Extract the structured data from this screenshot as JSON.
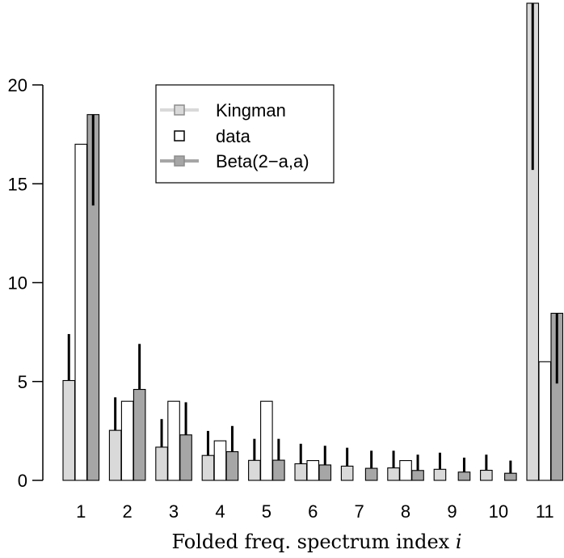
{
  "chart_data": {
    "type": "bar",
    "title": "",
    "xlabel": "Folded freq. spectrum index",
    "xlabel_var": "i",
    "ylabel": "",
    "categories": [
      "1",
      "2",
      "3",
      "4",
      "5",
      "6",
      "7",
      "8",
      "9",
      "10",
      "11"
    ],
    "yticks": [
      0,
      5,
      10,
      15,
      20
    ],
    "ylim": [
      0,
      24.5
    ],
    "legend_position": "top-left",
    "series": [
      {
        "name": "Kingman",
        "color": "#d9d9d9",
        "values": [
          5.05,
          2.53,
          1.68,
          1.26,
          1.01,
          0.84,
          0.72,
          0.63,
          0.56,
          0.51,
          24.5
        ],
        "error_lo": [
          5.05,
          2.53,
          1.68,
          1.26,
          1.01,
          0.84,
          0.72,
          0.63,
          0.56,
          0.51,
          15.7
        ],
        "error_hi": [
          7.4,
          4.2,
          3.1,
          2.5,
          2.1,
          1.85,
          1.65,
          1.5,
          1.4,
          1.3,
          24.5
        ]
      },
      {
        "name": "data",
        "color": "#ffffff",
        "values": [
          17,
          4,
          4,
          2,
          4,
          1,
          0,
          1,
          0,
          0,
          6
        ]
      },
      {
        "name": "Beta(2−a,a)",
        "color": "#a6a6a6",
        "values": [
          18.5,
          4.6,
          2.3,
          1.45,
          1.02,
          0.78,
          0.61,
          0.5,
          0.42,
          0.36,
          8.45
        ],
        "error_lo": [
          13.9,
          4.6,
          2.3,
          1.45,
          1.02,
          0.78,
          0.61,
          0.5,
          0.42,
          0.36,
          4.9
        ],
        "error_hi": [
          18.5,
          6.9,
          3.95,
          2.75,
          2.1,
          1.75,
          1.5,
          1.3,
          1.15,
          1.0,
          8.45
        ]
      }
    ]
  }
}
